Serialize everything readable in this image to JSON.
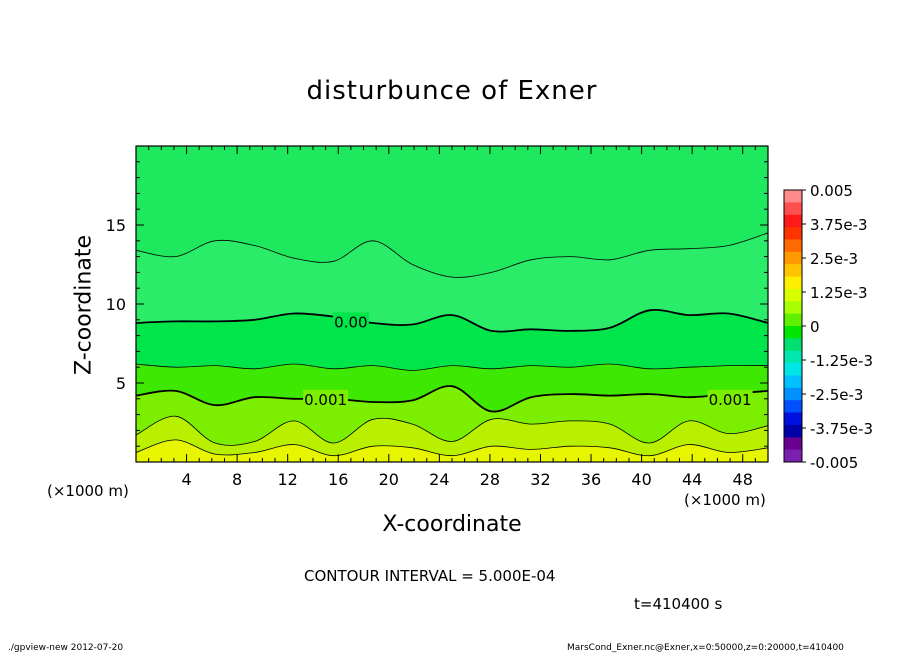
{
  "title": "disturbunce of Exner",
  "xlabel": "X-coordinate",
  "ylabel": "Z-coordinate",
  "x_unit": "(×1000 m)",
  "contour_interval": "CONTOUR INTERVAL = 5.000E-04",
  "time": "t=410400 s",
  "footer_left": "./gpview-new   2012-07-20",
  "footer_right": "MarsCond_Exner.nc@Exner,x=0:50000,z=0:20000,t=410400",
  "chart_data": {
    "type": "heatmap",
    "xlim": [
      0,
      50
    ],
    "ylim": [
      0,
      20
    ],
    "x_ticks": [
      4,
      8,
      12,
      16,
      20,
      24,
      28,
      32,
      36,
      40,
      44,
      48
    ],
    "y_ticks": [
      5,
      10,
      15
    ],
    "colorbar": {
      "range": [
        -0.005,
        0.005
      ],
      "tick_labels": [
        "0.005",
        "3.75e-3",
        "2.5e-3",
        "1.25e-3",
        "0",
        "-1.25e-3",
        "-2.5e-3",
        "-3.75e-3",
        "-0.005"
      ],
      "colors": [
        "#ff8a8a",
        "#ff5050",
        "#ff1a1a",
        "#ff3300",
        "#ff6a00",
        "#ff9900",
        "#ffc400",
        "#ffee00",
        "#d8ff00",
        "#a8ff00",
        "#5ef000",
        "#00e600",
        "#00e070",
        "#00e8b0",
        "#00e6e6",
        "#00c0ff",
        "#0090ff",
        "#0050ff",
        "#0010e0",
        "#0000a8",
        "#6a0090",
        "#7a20b0"
      ]
    },
    "bands": [
      {
        "level": "-5e-4",
        "color": "#2aec68",
        "z_top": [
          13.4,
          13.0,
          14.0,
          13.7,
          12.9,
          12.7,
          14.0,
          12.5,
          11.7,
          12.0,
          12.8,
          13.0,
          12.8,
          13.4,
          13.5,
          13.7,
          14.5
        ]
      },
      {
        "level": "0",
        "color": "#00e64a",
        "z_top": [
          8.8,
          8.9,
          8.9,
          9.0,
          9.4,
          9.2,
          8.8,
          8.7,
          9.3,
          8.3,
          8.4,
          8.3,
          8.5,
          9.6,
          9.3,
          9.4,
          8.8
        ]
      },
      {
        "level": "5e-4",
        "color": "#3ee800",
        "z_top": [
          6.2,
          6.0,
          6.1,
          5.9,
          6.2,
          5.9,
          6.1,
          5.8,
          6.1,
          5.9,
          6.1,
          6.0,
          6.2,
          5.9,
          6.0,
          6.1,
          6.1
        ]
      },
      {
        "level": "1e-3",
        "color": "#7cee00",
        "z_top": [
          4.2,
          4.5,
          3.6,
          4.1,
          4.0,
          4.0,
          3.8,
          3.9,
          4.8,
          3.2,
          4.1,
          4.3,
          4.2,
          4.3,
          4.1,
          4.3,
          4.5
        ]
      },
      {
        "level": "1.5e-3",
        "color": "#b8f000",
        "z_top": [
          1.7,
          2.9,
          1.2,
          1.3,
          2.6,
          1.2,
          2.7,
          2.4,
          1.3,
          2.7,
          2.4,
          2.6,
          2.4,
          1.2,
          2.6,
          1.8,
          2.3
        ]
      },
      {
        "level": "2e-3",
        "color": "#e8f500",
        "z_top": [
          0.6,
          1.4,
          0.5,
          0.6,
          1.1,
          0.4,
          1.0,
          0.9,
          0.4,
          1.0,
          0.8,
          1.0,
          0.9,
          0.4,
          1.1,
          0.6,
          0.9
        ]
      }
    ],
    "contour_labels": [
      {
        "text": "0.00",
        "x": 17,
        "z": 8.9
      },
      {
        "text": "0.001",
        "x": 15,
        "z": 4.0
      },
      {
        "text": "0.001",
        "x": 47,
        "z": 4.0
      }
    ]
  }
}
